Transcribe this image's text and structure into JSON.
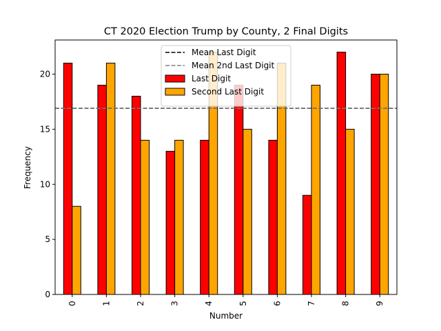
{
  "chart_data": {
    "type": "bar",
    "title": "CT 2020 Election Trump by County, 2 Final Digits",
    "xlabel": "Number",
    "ylabel": "Frequency",
    "categories": [
      "0",
      "1",
      "2",
      "3",
      "4",
      "5",
      "6",
      "7",
      "8",
      "9"
    ],
    "series": [
      {
        "name": "Last Digit",
        "color": "#ff0000",
        "values": [
          21,
          19,
          18,
          13,
          14,
          19,
          14,
          9,
          22,
          20
        ]
      },
      {
        "name": "Second Last Digit",
        "color": "#ffa500",
        "values": [
          8,
          21,
          14,
          14,
          22,
          15,
          21,
          19,
          15,
          20
        ]
      }
    ],
    "reference_lines": [
      {
        "name": "Mean Last Digit",
        "color": "#000000",
        "style": "dashed",
        "value": 16.9
      },
      {
        "name": "Mean 2nd Last Digit",
        "color": "#808080",
        "style": "dashed",
        "value": 16.9
      }
    ],
    "ylim": [
      0,
      23.1
    ],
    "yticks": [
      0,
      5,
      10,
      15,
      20
    ],
    "grid": false,
    "legend_position": "top-center"
  }
}
